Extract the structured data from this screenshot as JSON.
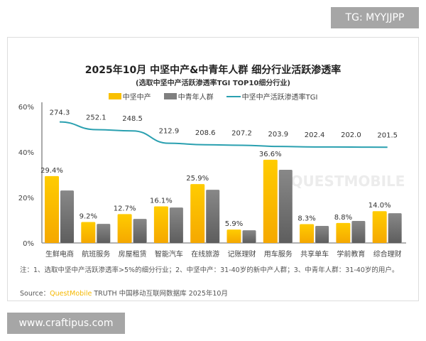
{
  "overlay": {
    "tg_label": "TG: MYYJJPP",
    "website": "www.craftipus.com"
  },
  "chart_data": {
    "type": "bar",
    "title": "2025年10月 中坚中产&中青年人群 细分行业活跃渗透率",
    "subtitle": "(选取中坚中产活跃渗透率TGI TOP10细分行业)",
    "categories": [
      "生鲜电商",
      "航班服务",
      "房屋租赁",
      "智能汽车",
      "在线旅游",
      "记账理财",
      "用车服务",
      "共享单车",
      "学前教育",
      "综合理财"
    ],
    "series": [
      {
        "name": "中坚中产",
        "type": "bar",
        "color": "#f9c000",
        "values": [
          29.4,
          9.2,
          12.7,
          16.1,
          25.9,
          5.9,
          36.6,
          8.3,
          8.8,
          14.0
        ],
        "labels": [
          "29.4%",
          "9.2%",
          "12.7%",
          "16.1%",
          "25.9%",
          "5.9%",
          "36.6%",
          "8.3%",
          "8.8%",
          "14.0%"
        ]
      },
      {
        "name": "中青年人群",
        "type": "bar",
        "color": "#7f7f7f",
        "values": [
          23.1,
          8.4,
          10.6,
          15.6,
          23.4,
          5.6,
          32.2,
          7.5,
          9.7,
          13.1
        ]
      },
      {
        "name": "中坚中产活跃渗透率TGI",
        "type": "line",
        "color": "#2aa0b0",
        "values": [
          274.3,
          252.1,
          248.5,
          212.9,
          208.6,
          207.2,
          203.9,
          202.4,
          202.0,
          201.5
        ],
        "labels": [
          "274.3",
          "252.1",
          "248.5",
          "212.9",
          "208.6",
          "207.2",
          "203.9",
          "202.4",
          "202.0",
          "201.5"
        ]
      }
    ],
    "yticks": [
      "0%",
      "20%",
      "40%",
      "60%"
    ],
    "ylim": [
      0,
      60
    ],
    "grid": false,
    "legend": "top",
    "note": "注：1、选取中坚中产活跃渗透率>5%的细分行业；2、中坚中产：31-40岁的新中产人群；3、中青年人群：31-40岁的用户。",
    "source_prefix": "Source：",
    "source_brand": "QuestMobile",
    "source_text": " TRUTH 中国移动互联网数据库 2025年10月",
    "watermark": "QUESTMOBILE"
  }
}
